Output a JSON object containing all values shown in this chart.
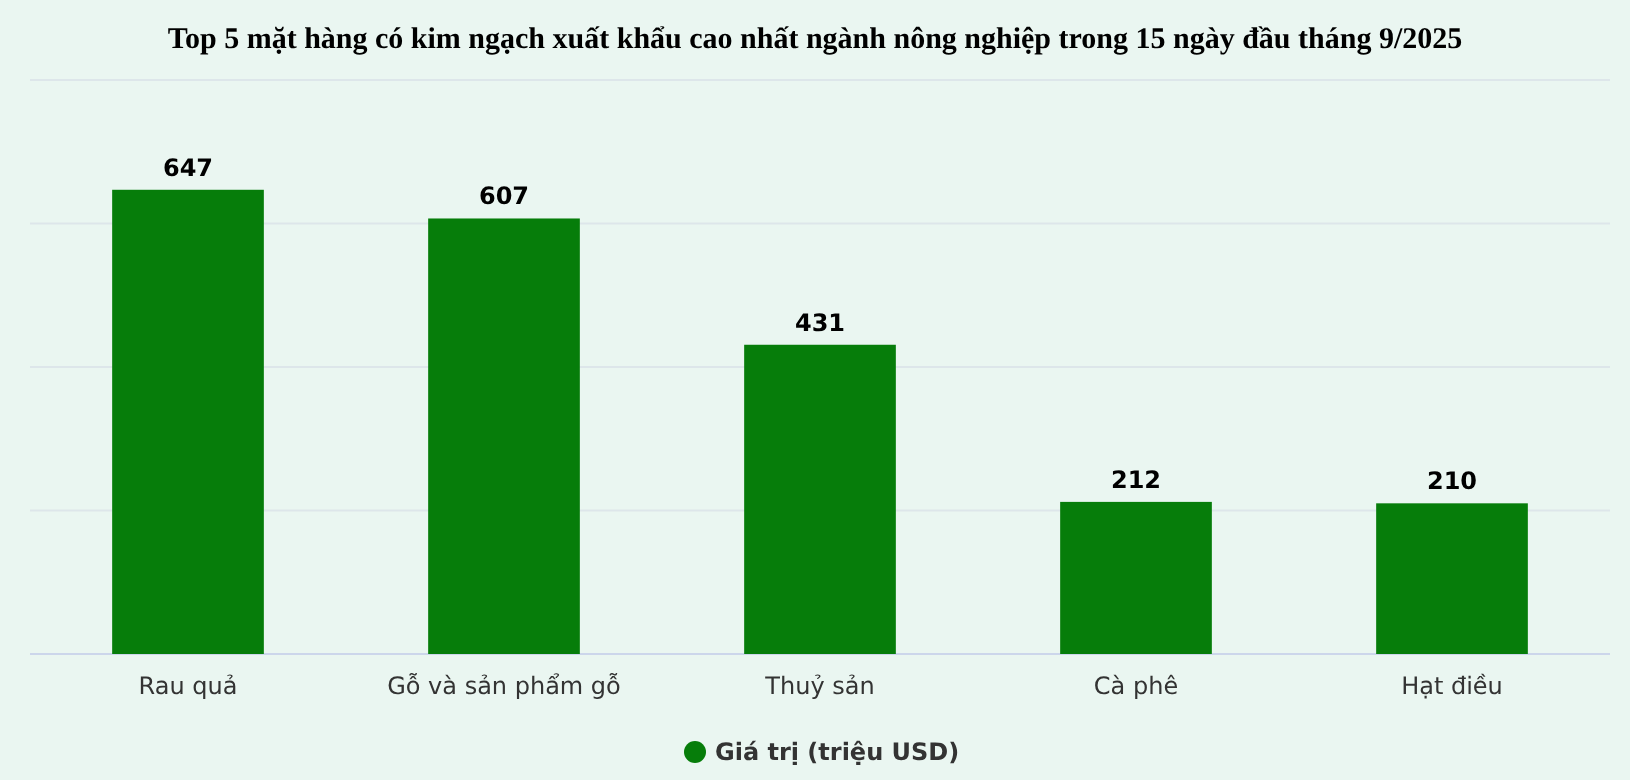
{
  "chart_data": {
    "type": "bar",
    "title": "Top 5 mặt hàng có kim ngạch xuất khẩu cao nhất ngành nông nghiệp trong 15 ngày đầu tháng 9/2025",
    "categories": [
      "Rau quả",
      "Gỗ và sản phẩm gỗ",
      "Thuỷ sản",
      "Cà phê",
      "Hạt điều"
    ],
    "series": [
      {
        "name": "Giá trị (triệu USD)",
        "color": "#067d0a",
        "values": [
          647,
          607,
          431,
          212,
          210
        ]
      }
    ],
    "ylim": [
      0,
      800
    ],
    "yticks": [
      {
        "value": 0,
        "label": null
      },
      {
        "value": 200,
        "label": null
      },
      {
        "value": 400,
        "label": null
      },
      {
        "value": 600,
        "label": null
      },
      {
        "value": 800,
        "label": null
      }
    ],
    "tick_labels": "x",
    "grid": "y",
    "data_labels": true,
    "legend": "bottom",
    "marker": "circle"
  }
}
